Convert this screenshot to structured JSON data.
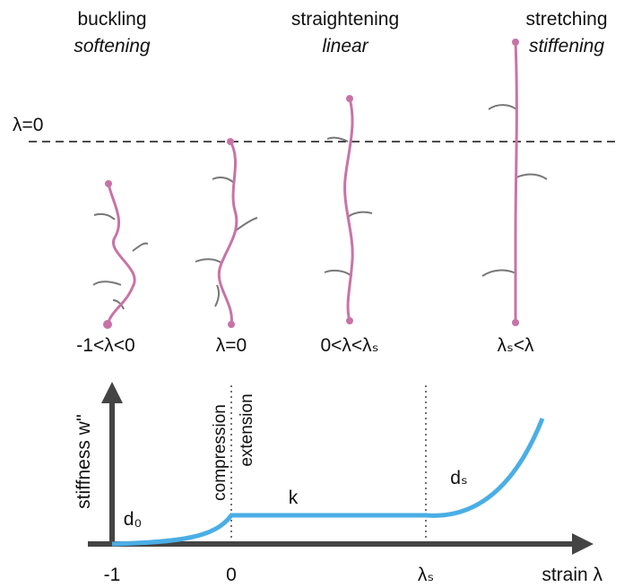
{
  "regimes": [
    {
      "title": "buckling",
      "subtitle": "softening"
    },
    {
      "title": "straightening",
      "subtitle": "linear"
    },
    {
      "title": "stretching",
      "subtitle": "stiffening"
    }
  ],
  "reference_label": "λ=0",
  "states": [
    "-1<λ<0",
    "λ=0",
    "0<λ<λₛ",
    "λₛ<λ"
  ],
  "graph": {
    "y_label": "stiffness w''",
    "x_label": "strain λ",
    "x_ticks": [
      "-1",
      "0",
      "λₛ"
    ],
    "divider_labels": [
      "compression",
      "extension"
    ],
    "annotations": [
      "d₀",
      "k",
      "dₛ"
    ]
  }
}
